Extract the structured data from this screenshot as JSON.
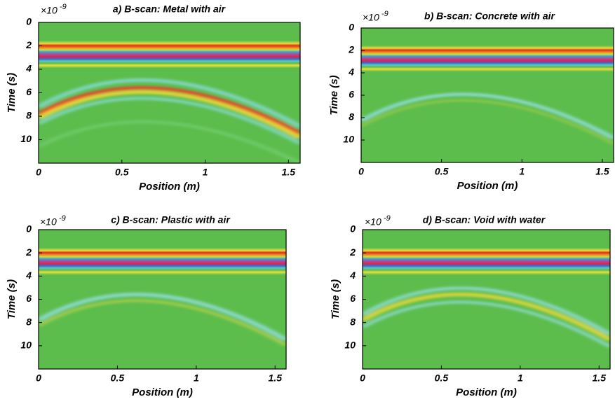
{
  "chart_data": [
    {
      "type": "image",
      "title": "a) B-scan: Metal with air",
      "xlabel": "Position (m)",
      "ylabel": "Time (s)",
      "y_offset": "×10",
      "y_offset_exponent": "-9",
      "xlim": [
        0,
        1.57
      ],
      "xticks": [
        0,
        0.5,
        1,
        1.5
      ],
      "ylim": [
        0,
        12
      ],
      "yticks": [
        0,
        2,
        4,
        6,
        8,
        10
      ],
      "y_inverted": true
    },
    {
      "type": "image",
      "title": "b) B-scan: Concrete with air",
      "xlabel": "Position (m)",
      "ylabel": "Time (s)",
      "y_offset": "×10",
      "y_offset_exponent": "-9",
      "xlim": [
        0,
        1.57
      ],
      "xticks": [
        0,
        0.5,
        1,
        1.5
      ],
      "ylim": [
        0,
        12
      ],
      "yticks": [
        0,
        2,
        4,
        6,
        8,
        10
      ],
      "y_inverted": true
    },
    {
      "type": "image",
      "title": "c) B-scan: Plastic with air",
      "xlabel": "Position (m)",
      "ylabel": "Time (s)",
      "y_offset": "×10",
      "y_offset_exponent": "-9",
      "xlim": [
        0,
        1.57
      ],
      "xticks": [
        0,
        0.5,
        1,
        1.5
      ],
      "ylim": [
        0,
        12
      ],
      "yticks": [
        0,
        2,
        4,
        6,
        8,
        10
      ],
      "y_inverted": true
    },
    {
      "type": "image",
      "title": "d) B-scan: Void with water",
      "xlabel": "Position (m)",
      "ylabel": "Time (s)",
      "y_offset": "×10",
      "y_offset_exponent": "-9",
      "xlim": [
        0,
        1.57
      ],
      "xticks": [
        0,
        0.5,
        1,
        1.5
      ],
      "ylim": [
        0,
        12
      ],
      "yticks": [
        0,
        2,
        4,
        6,
        8,
        10
      ],
      "y_inverted": true
    }
  ]
}
